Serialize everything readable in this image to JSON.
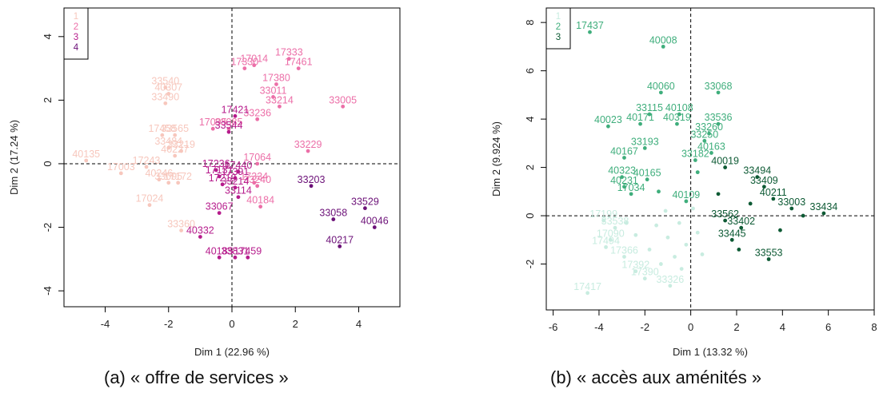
{
  "panel_a": {
    "caption": "(a)  « offre de services »",
    "colors": [
      "#f7c7bd",
      "#ec6fa8",
      "#b61c8c",
      "#6c1178"
    ]
  },
  "panel_b": {
    "caption": "(b)  « accès aux aménités »",
    "colors": [
      "#c8ece0",
      "#3fae7c",
      "#0d5a34"
    ]
  },
  "chart_data": [
    {
      "type": "scatter",
      "title": "",
      "xlabel": "Dim 1 (22.96 %)",
      "ylabel": "Dim 2 (17.24 %)",
      "xlim": [
        -5.3,
        5.3
      ],
      "ylim": [
        -4.5,
        4.9
      ],
      "xticks": [
        -4,
        -2,
        0,
        2,
        4
      ],
      "yticks": [
        -4,
        -2,
        0,
        2,
        4
      ],
      "legend_position": "top-left",
      "legend": [
        "1",
        "2",
        "3",
        "4"
      ],
      "ref_lines": {
        "x": 0,
        "y": 0
      },
      "series": [
        {
          "name": "1",
          "points": [
            {
              "x": -2.1,
              "y": 2.4,
              "label": "33540"
            },
            {
              "x": -2.0,
              "y": 2.2,
              "label": "40307"
            },
            {
              "x": -2.1,
              "y": 1.9,
              "label": "33490"
            },
            {
              "x": -2.2,
              "y": 0.9,
              "label": "17458"
            },
            {
              "x": -1.8,
              "y": 0.9,
              "label": "33565"
            },
            {
              "x": -2.0,
              "y": 0.5,
              "label": "33484"
            },
            {
              "x": -1.6,
              "y": 0.4,
              "label": "33219"
            },
            {
              "x": -1.8,
              "y": 0.25,
              "label": "40227"
            },
            {
              "x": -4.6,
              "y": 0.1,
              "label": "40135"
            },
            {
              "x": -3.5,
              "y": -0.3,
              "label": "17003"
            },
            {
              "x": -2.7,
              "y": -0.1,
              "label": "17243"
            },
            {
              "x": -2.3,
              "y": -0.5,
              "label": "40246"
            },
            {
              "x": -2.0,
              "y": -0.6,
              "label": "33095"
            },
            {
              "x": -1.7,
              "y": -0.6,
              "label": "17172"
            },
            {
              "x": -2.6,
              "y": -1.3,
              "label": "17024"
            },
            {
              "x": -1.6,
              "y": -2.1,
              "label": "33360"
            }
          ]
        },
        {
          "name": "2",
          "points": [
            {
              "x": 0.4,
              "y": 3.0,
              "label": "17330"
            },
            {
              "x": 0.7,
              "y": 3.1,
              "label": "17014"
            },
            {
              "x": 1.8,
              "y": 3.3,
              "label": "17333"
            },
            {
              "x": 2.1,
              "y": 3.0,
              "label": "17461"
            },
            {
              "x": 1.4,
              "y": 2.5,
              "label": "17380"
            },
            {
              "x": 1.3,
              "y": 2.1,
              "label": "33011"
            },
            {
              "x": 1.5,
              "y": 1.8,
              "label": "33214"
            },
            {
              "x": 3.5,
              "y": 1.8,
              "label": "33005"
            },
            {
              "x": 0.8,
              "y": 1.4,
              "label": "33236"
            },
            {
              "x": -0.6,
              "y": 1.1,
              "label": "17095"
            },
            {
              "x": -0.1,
              "y": 1.1,
              "label": "33085"
            },
            {
              "x": 2.4,
              "y": 0.4,
              "label": "33229"
            },
            {
              "x": 0.8,
              "y": 0.0,
              "label": "17064"
            },
            {
              "x": 0.7,
              "y": -0.6,
              "label": "17334"
            },
            {
              "x": 0.8,
              "y": -0.7,
              "label": "33240"
            },
            {
              "x": 0.9,
              "y": -1.35,
              "label": "40184"
            }
          ]
        },
        {
          "name": "3",
          "points": [
            {
              "x": 0.1,
              "y": 1.5,
              "label": "17421"
            },
            {
              "x": -0.1,
              "y": 1.0,
              "label": "33544"
            },
            {
              "x": -0.5,
              "y": -0.2,
              "label": "17236"
            },
            {
              "x": 0.2,
              "y": -0.25,
              "label": "17440"
            },
            {
              "x": -0.4,
              "y": -0.4,
              "label": "17131"
            },
            {
              "x": 0.1,
              "y": -0.45,
              "label": "17391"
            },
            {
              "x": -0.3,
              "y": -0.65,
              "label": "17219"
            },
            {
              "x": 0.1,
              "y": -0.75,
              "label": "33214"
            },
            {
              "x": 0.2,
              "y": -1.05,
              "label": "33114"
            },
            {
              "x": -0.4,
              "y": -1.55,
              "label": "33067"
            },
            {
              "x": -1.0,
              "y": -2.3,
              "label": "40332"
            },
            {
              "x": -0.4,
              "y": -2.95,
              "label": "40185"
            },
            {
              "x": 0.1,
              "y": -2.95,
              "label": "33831"
            },
            {
              "x": 0.5,
              "y": -2.95,
              "label": "17459"
            }
          ]
        },
        {
          "name": "4",
          "points": [
            {
              "x": 2.5,
              "y": -0.7,
              "label": "33203"
            },
            {
              "x": 3.2,
              "y": -1.75,
              "label": "33058"
            },
            {
              "x": 4.2,
              "y": -1.4,
              "label": "33529"
            },
            {
              "x": 4.5,
              "y": -2.0,
              "label": "40046"
            },
            {
              "x": 3.4,
              "y": -2.6,
              "label": "40217"
            }
          ]
        }
      ]
    },
    {
      "type": "scatter",
      "title": "",
      "xlabel": "Dim 1 (13.32 %)",
      "ylabel": "Dim 2 (9.924 %)",
      "xlim": [
        -6.3,
        8.0
      ],
      "ylim": [
        -3.9,
        8.6
      ],
      "xticks": [
        -6,
        -4,
        -2,
        0,
        2,
        4,
        6,
        8
      ],
      "yticks": [
        -2,
        0,
        2,
        4,
        6,
        8
      ],
      "legend_position": "top-left",
      "legend": [
        "1",
        "2",
        "3"
      ],
      "ref_lines": {
        "x": 0,
        "y": 0
      },
      "series": [
        {
          "name": "1",
          "points": [
            {
              "x": -3.8,
              "y": -0.2,
              "label": "17199"
            },
            {
              "x": -3.3,
              "y": -0.5,
              "label": "33538"
            },
            {
              "x": -3.5,
              "y": -1.0,
              "label": "17090"
            },
            {
              "x": -3.7,
              "y": -1.3,
              "label": "17494"
            },
            {
              "x": -2.9,
              "y": -1.7,
              "label": "17366"
            },
            {
              "x": -2.4,
              "y": -2.3,
              "label": "17392"
            },
            {
              "x": -2.0,
              "y": -2.6,
              "label": "17390"
            },
            {
              "x": -0.9,
              "y": -2.9,
              "label": "33326"
            },
            {
              "x": -4.5,
              "y": -3.2,
              "label": "17417"
            },
            {
              "x": -1.5,
              "y": -0.4,
              "label": ""
            },
            {
              "x": -1.0,
              "y": -0.9,
              "label": ""
            },
            {
              "x": -0.5,
              "y": -0.3,
              "label": ""
            },
            {
              "x": -0.2,
              "y": -1.2,
              "label": ""
            },
            {
              "x": -1.8,
              "y": -1.4,
              "label": ""
            },
            {
              "x": -0.7,
              "y": -1.7,
              "label": ""
            },
            {
              "x": 0.3,
              "y": -0.7,
              "label": ""
            },
            {
              "x": -2.4,
              "y": -0.8,
              "label": ""
            },
            {
              "x": -1.3,
              "y": -2.0,
              "label": ""
            },
            {
              "x": 0.5,
              "y": -1.6,
              "label": ""
            },
            {
              "x": -2.8,
              "y": -0.3,
              "label": ""
            },
            {
              "x": -0.4,
              "y": -2.2,
              "label": ""
            },
            {
              "x": 0.1,
              "y": 0.3,
              "label": ""
            },
            {
              "x": -1.1,
              "y": 0.2,
              "label": ""
            }
          ]
        },
        {
          "name": "2",
          "points": [
            {
              "x": -4.4,
              "y": 7.6,
              "label": "17437"
            },
            {
              "x": -1.2,
              "y": 7.0,
              "label": "40008"
            },
            {
              "x": -1.3,
              "y": 5.1,
              "label": "40060"
            },
            {
              "x": 1.2,
              "y": 5.1,
              "label": "33068"
            },
            {
              "x": -1.8,
              "y": 4.2,
              "label": "33115"
            },
            {
              "x": -0.5,
              "y": 4.2,
              "label": "40108"
            },
            {
              "x": -3.6,
              "y": 3.7,
              "label": "40023"
            },
            {
              "x": -2.2,
              "y": 3.8,
              "label": "40171"
            },
            {
              "x": -0.6,
              "y": 3.8,
              "label": "40319"
            },
            {
              "x": 1.2,
              "y": 3.8,
              "label": "33536"
            },
            {
              "x": 0.8,
              "y": 3.4,
              "label": "33260"
            },
            {
              "x": 0.6,
              "y": 3.1,
              "label": "33250"
            },
            {
              "x": -2.0,
              "y": 2.8,
              "label": "33193"
            },
            {
              "x": 0.9,
              "y": 2.6,
              "label": "40163"
            },
            {
              "x": -2.9,
              "y": 2.4,
              "label": "40167"
            },
            {
              "x": 0.2,
              "y": 2.3,
              "label": "33182"
            },
            {
              "x": -3.0,
              "y": 1.6,
              "label": "40323"
            },
            {
              "x": -1.9,
              "y": 1.5,
              "label": "40165"
            },
            {
              "x": -2.9,
              "y": 1.2,
              "label": "40231"
            },
            {
              "x": -2.6,
              "y": 0.9,
              "label": "17034"
            },
            {
              "x": -0.2,
              "y": 0.6,
              "label": "40109"
            },
            {
              "x": -1.4,
              "y": 1.0,
              "label": ""
            },
            {
              "x": 0.3,
              "y": 1.8,
              "label": ""
            }
          ]
        },
        {
          "name": "3",
          "points": [
            {
              "x": 1.5,
              "y": 2.0,
              "label": "40019"
            },
            {
              "x": 2.9,
              "y": 1.6,
              "label": "33494"
            },
            {
              "x": 3.2,
              "y": 1.2,
              "label": "33409"
            },
            {
              "x": 3.6,
              "y": 0.7,
              "label": "40211"
            },
            {
              "x": 4.4,
              "y": 0.3,
              "label": "33003"
            },
            {
              "x": 5.8,
              "y": 0.1,
              "label": "33434"
            },
            {
              "x": 1.5,
              "y": -0.2,
              "label": "33562"
            },
            {
              "x": 2.2,
              "y": -0.5,
              "label": "33402"
            },
            {
              "x": 1.8,
              "y": -1.0,
              "label": "33445"
            },
            {
              "x": 3.4,
              "y": -1.8,
              "label": "33553"
            },
            {
              "x": 2.6,
              "y": 0.5,
              "label": ""
            },
            {
              "x": 1.2,
              "y": 0.9,
              "label": ""
            },
            {
              "x": 3.9,
              "y": -0.6,
              "label": ""
            },
            {
              "x": 2.1,
              "y": -1.4,
              "label": ""
            },
            {
              "x": 4.9,
              "y": 0.0,
              "label": ""
            }
          ]
        }
      ]
    }
  ]
}
